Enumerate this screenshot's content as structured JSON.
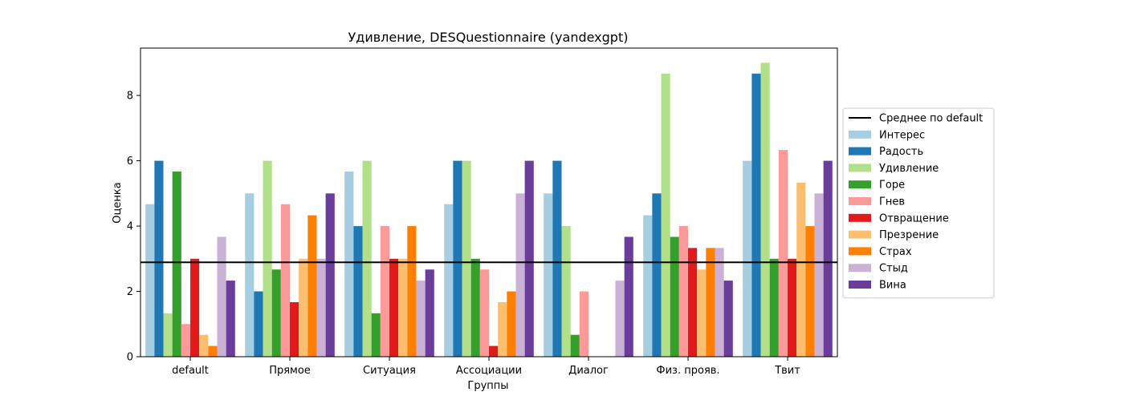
{
  "chart_data": {
    "type": "bar",
    "title": "Удивление, DESQuestionnaire (yandexgpt)",
    "xlabel": "Группы",
    "ylabel": "Оценка",
    "ylim": [
      0,
      9.45
    ],
    "yticks": [
      0,
      2,
      4,
      6,
      8
    ],
    "legend_placement": "center-right",
    "reference_line": {
      "label": "Среднее по default",
      "value": 2.89,
      "color": "#000000"
    },
    "categories": [
      "default",
      "Прямое",
      "Ситуация",
      "Ассоциации",
      "Диалог",
      "Физ. прояв.",
      "Твит"
    ],
    "series": [
      {
        "name": "Интерес",
        "color": "#a6cee3",
        "values": [
          4.67,
          5.0,
          5.67,
          4.67,
          5.0,
          4.33,
          6.0
        ]
      },
      {
        "name": "Радость",
        "color": "#1f78b4",
        "values": [
          6.0,
          2.0,
          4.0,
          6.0,
          6.0,
          5.0,
          8.67
        ]
      },
      {
        "name": "Удивление",
        "color": "#b2df8a",
        "values": [
          1.33,
          6.0,
          6.0,
          6.0,
          4.0,
          8.67,
          9.0
        ]
      },
      {
        "name": "Горе",
        "color": "#33a02c",
        "values": [
          5.67,
          2.67,
          1.33,
          3.0,
          0.67,
          3.67,
          3.0
        ]
      },
      {
        "name": "Гнев",
        "color": "#fb9a99",
        "values": [
          1.0,
          4.67,
          4.0,
          2.67,
          2.0,
          4.0,
          6.33
        ]
      },
      {
        "name": "Отвращение",
        "color": "#e31a1c",
        "values": [
          3.0,
          1.67,
          3.0,
          0.33,
          0.0,
          3.33,
          3.0
        ]
      },
      {
        "name": "Презрение",
        "color": "#fdbf6f",
        "values": [
          0.67,
          3.0,
          3.0,
          1.67,
          0.0,
          2.67,
          5.33
        ]
      },
      {
        "name": "Страх",
        "color": "#ff7f00",
        "values": [
          0.33,
          4.33,
          4.0,
          2.0,
          0.0,
          3.33,
          4.0
        ]
      },
      {
        "name": "Стыд",
        "color": "#cab2d6",
        "values": [
          3.67,
          3.0,
          2.33,
          5.0,
          2.33,
          3.33,
          5.0
        ]
      },
      {
        "name": "Вина",
        "color": "#6a3d9a",
        "values": [
          2.33,
          5.0,
          2.67,
          6.0,
          3.67,
          2.33,
          6.0
        ]
      }
    ]
  }
}
